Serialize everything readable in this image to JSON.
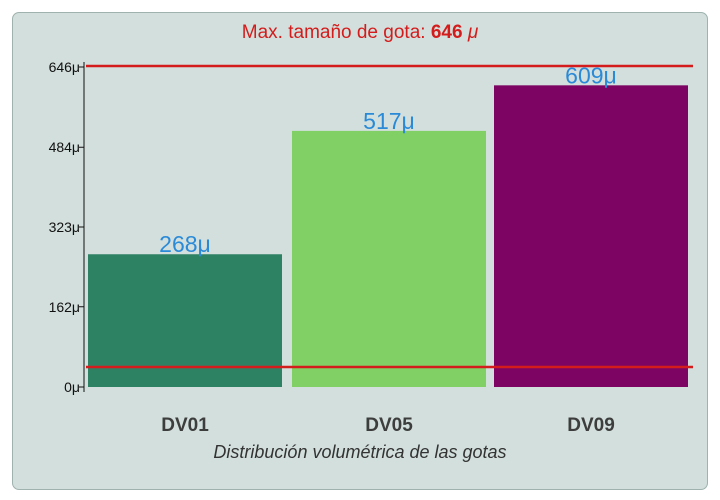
{
  "header": {
    "title_prefix": "Max. tamaño de gota:",
    "title_value": "646",
    "title_unit": "μ"
  },
  "footer": {
    "subtitle": "Distribución volumétrica de las gotas"
  },
  "colors": {
    "limit_line": "#d41c1c",
    "value_label": "#2a8ad8",
    "category_label": "#3d3d3d",
    "tick_label": "#111111"
  },
  "chart_data": {
    "type": "bar",
    "title": "Max. tamaño de gota: 646 μ",
    "categories": [
      "DV01",
      "DV05",
      "DV09"
    ],
    "values": [
      268,
      517,
      609
    ],
    "value_labels": [
      "268μ",
      "517μ",
      "609μ"
    ],
    "bar_colors": [
      "#2e8264",
      "#80d066",
      "#7d0463"
    ],
    "xlabel": "Distribución volumétrica de las gotas",
    "ylabel": "",
    "ylim": [
      0,
      646
    ],
    "yticks": [
      0,
      162,
      323,
      484,
      646
    ],
    "ytick_labels": [
      "0μ",
      "162μ",
      "323μ",
      "484μ",
      "646μ"
    ],
    "reference_lines": [
      0,
      646
    ],
    "grid": false,
    "legend": "none"
  }
}
